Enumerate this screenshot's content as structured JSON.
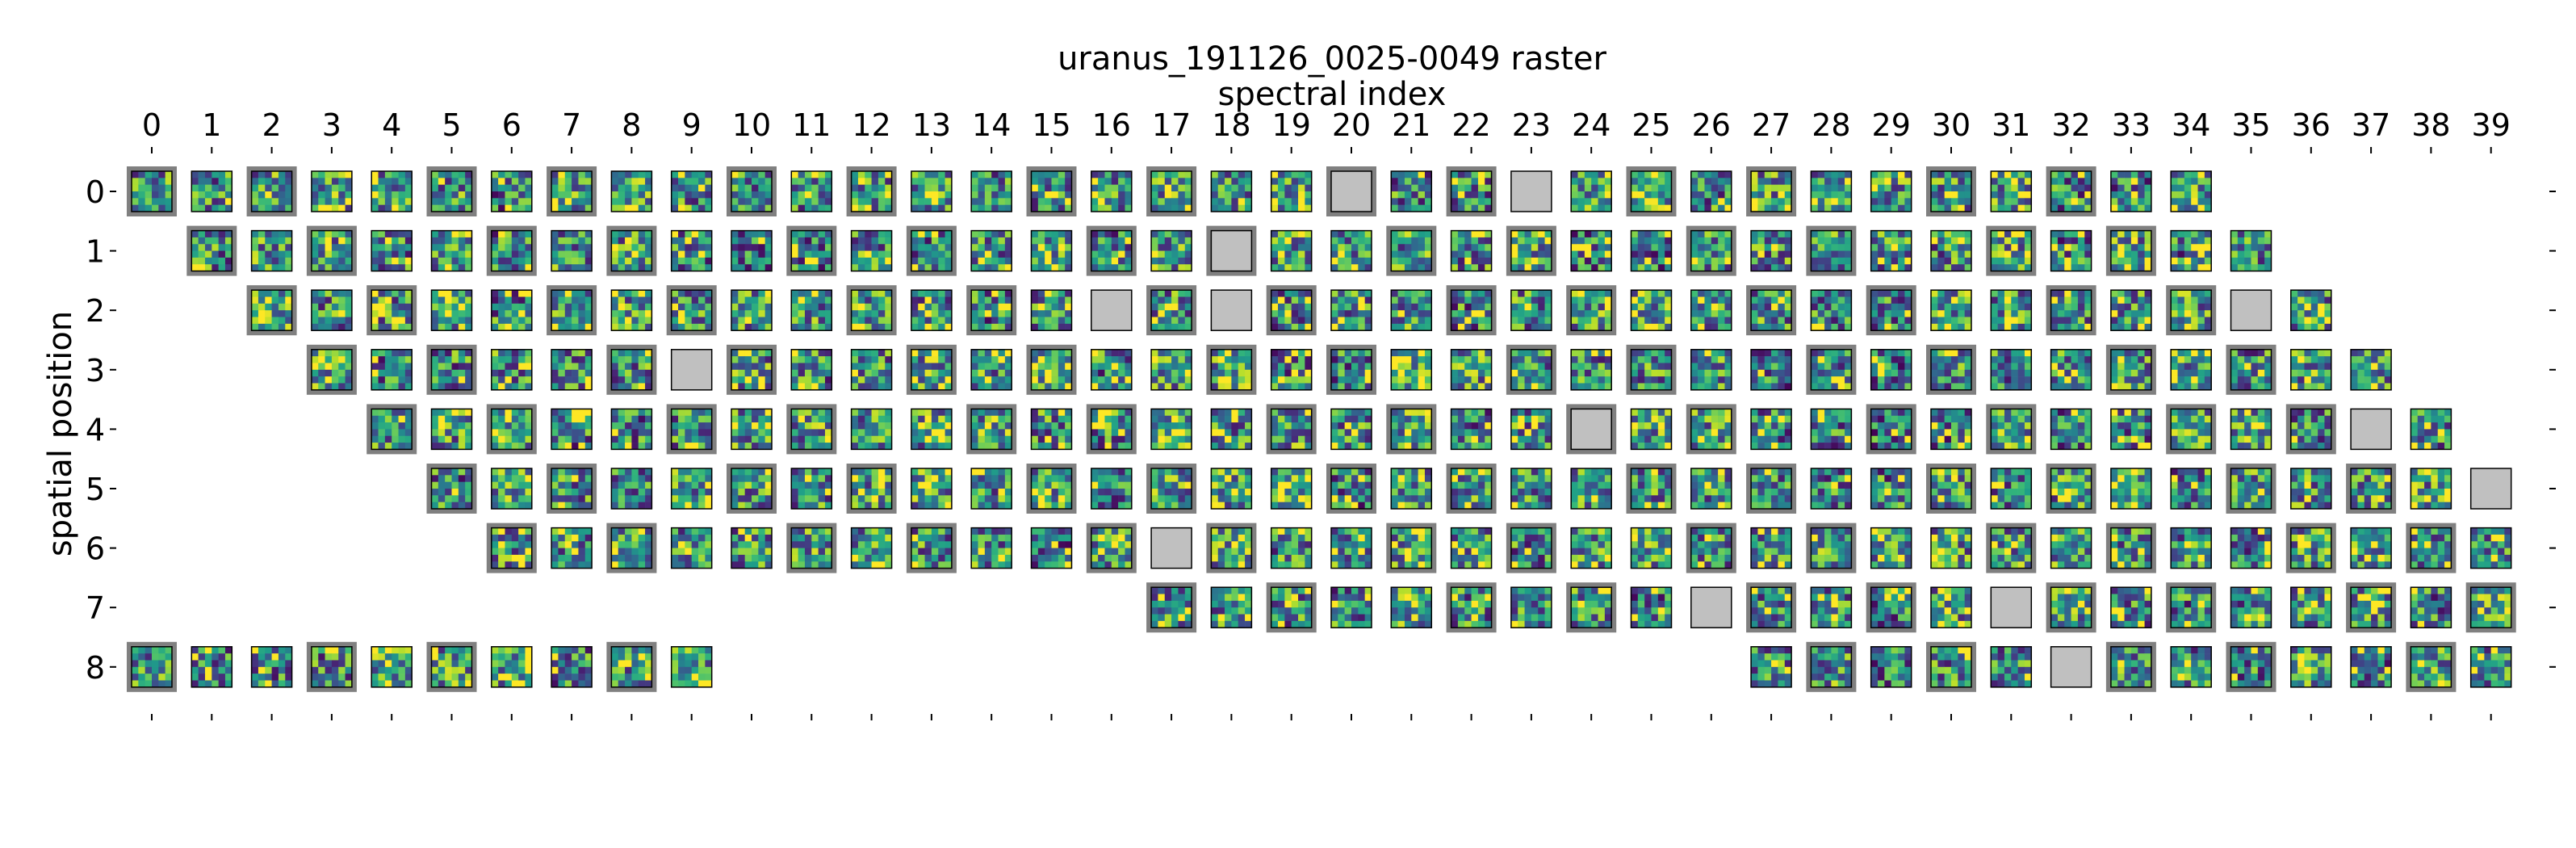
{
  "chart_data": {
    "type": "heatmap",
    "title": "uranus_191126_0025-0049 raster",
    "xlabel": "spectral index",
    "ylabel": "spatial position",
    "x_ticks": [
      "0",
      "1",
      "2",
      "3",
      "4",
      "5",
      "6",
      "7",
      "8",
      "9",
      "10",
      "11",
      "12",
      "13",
      "14",
      "15",
      "16",
      "17",
      "18",
      "19",
      "20",
      "21",
      "22",
      "23",
      "24",
      "25",
      "26",
      "27",
      "28",
      "29",
      "30",
      "31",
      "32",
      "33",
      "34",
      "35",
      "36",
      "37",
      "38",
      "39"
    ],
    "y_ticks": [
      "0",
      "1",
      "2",
      "3",
      "4",
      "5",
      "6",
      "7",
      "8"
    ],
    "colormap": "viridis",
    "thumbnail_pixels": 6,
    "row_spans": [
      {
        "row": 0,
        "from": 0,
        "to": 34
      },
      {
        "row": 1,
        "from": 1,
        "to": 35
      },
      {
        "row": 2,
        "from": 2,
        "to": 36
      },
      {
        "row": 3,
        "from": 3,
        "to": 37
      },
      {
        "row": 4,
        "from": 4,
        "to": 38
      },
      {
        "row": 5,
        "from": 5,
        "to": 39
      },
      {
        "row": 6,
        "from": 6,
        "to": 39
      },
      {
        "row": 7,
        "from": 17,
        "to": 39
      },
      {
        "row": 8,
        "from": 0,
        "to": 9
      },
      {
        "row": 8,
        "from": 27,
        "to": 39
      }
    ],
    "missing_cells": [
      [
        0,
        20
      ],
      [
        0,
        23
      ],
      [
        1,
        18
      ],
      [
        2,
        16
      ],
      [
        2,
        18
      ],
      [
        2,
        35
      ],
      [
        3,
        9
      ],
      [
        4,
        24
      ],
      [
        4,
        37
      ],
      [
        5,
        39
      ],
      [
        6,
        17
      ],
      [
        7,
        26
      ],
      [
        7,
        31
      ],
      [
        8,
        32
      ]
    ],
    "frame_colors": {
      "gray": "#808080",
      "white": "#ffffff",
      "missing_fill": "#c0c0c0"
    }
  }
}
